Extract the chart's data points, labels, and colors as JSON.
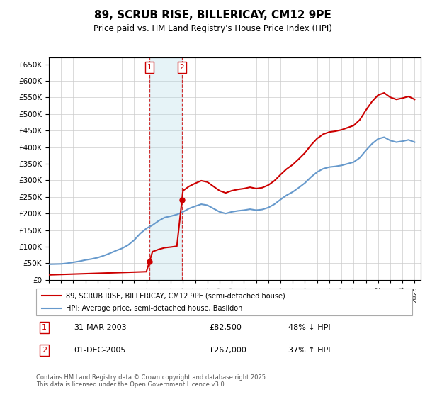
{
  "title": "89, SCRUB RISE, BILLERICAY, CM12 9PE",
  "subtitle": "Price paid vs. HM Land Registry's House Price Index (HPI)",
  "legend_line1": "89, SCRUB RISE, BILLERICAY, CM12 9PE (semi-detached house)",
  "legend_line2": "HPI: Average price, semi-detached house, Basildon",
  "transaction1_date": "31-MAR-2003",
  "transaction1_price": "£82,500",
  "transaction1_hpi": "48% ↓ HPI",
  "transaction1_year": 2003.25,
  "transaction1_value": 82500,
  "transaction2_date": "01-DEC-2005",
  "transaction2_price": "£267,000",
  "transaction2_hpi": "37% ↑ HPI",
  "transaction2_year": 2005.92,
  "transaction2_value": 267000,
  "hpi_color": "#6699cc",
  "price_color": "#cc0000",
  "background_color": "#ffffff",
  "grid_color": "#cccccc",
  "ylim": [
    0,
    670000
  ],
  "xlim_start": 1995,
  "xlim_end": 2025.5,
  "footer": "Contains HM Land Registry data © Crown copyright and database right 2025.\nThis data is licensed under the Open Government Licence v3.0."
}
